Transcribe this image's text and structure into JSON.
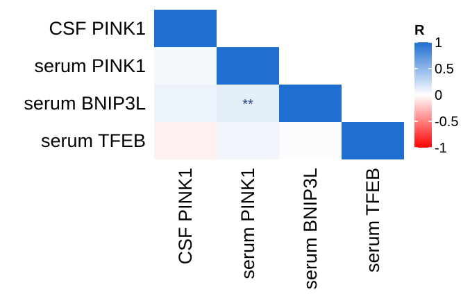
{
  "chart_data": {
    "type": "heatmap",
    "title": "",
    "rows": [
      "CSF PINK1",
      "serum PINK1",
      "serum BNIP3L",
      "serum TFEB"
    ],
    "columns": [
      "CSF PINK1",
      "serum PINK1",
      "serum BNIP3L",
      "serum TFEB"
    ],
    "layout": "lower-triangle-with-diagonal",
    "values": [
      [
        1,
        null,
        null,
        null
      ],
      [
        0.05,
        1,
        null,
        null
      ],
      [
        0.08,
        0.12,
        1,
        null
      ],
      [
        -0.06,
        0.06,
        0.02,
        1
      ]
    ],
    "annotations": [
      {
        "row": 2,
        "col": 1,
        "text": "**"
      }
    ],
    "legend": {
      "title": "R",
      "position": "right",
      "range": [
        -1,
        1
      ],
      "ticks": [
        {
          "value": 1,
          "label": "1"
        },
        {
          "value": 0.5,
          "label": "0.5"
        },
        {
          "value": 0,
          "label": "0"
        },
        {
          "value": -0.5,
          "label": "-0.5"
        },
        {
          "value": -1,
          "label": "-1"
        }
      ],
      "colors": {
        "low": "#ff0000",
        "mid": "#ffffff",
        "high": "#1f6fd1"
      }
    },
    "grid": false
  }
}
